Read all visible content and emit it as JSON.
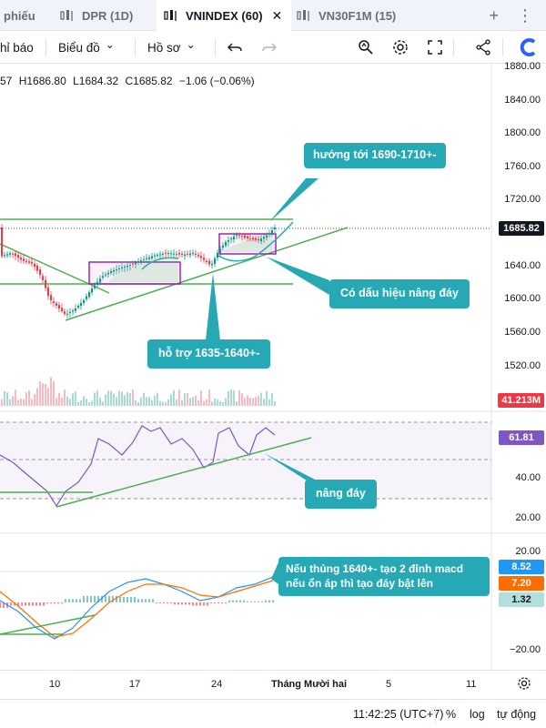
{
  "tabs": [
    {
      "label": "phiếu",
      "active": false
    },
    {
      "label": "DPR (1D)",
      "active": false
    },
    {
      "label": "VNINDEX (60)",
      "active": true
    },
    {
      "label": "VN30F1M (15)",
      "active": false
    }
  ],
  "tab_close_symbol": "✕",
  "tabbar_actions": {
    "add_symbol": "+",
    "more_symbol": "⋮"
  },
  "toolbar": {
    "item_alerts": "hỉ báo",
    "item_chart": "Biểu đồ",
    "item_profile": "Hồ sơ",
    "chevron": "⌄"
  },
  "ohlc": {
    "prefix": "57",
    "high": "H1686.80",
    "low": "L1684.32",
    "close": "C1685.82",
    "change": "−1.06 (−0.06%)"
  },
  "price_axis": {
    "labels": [
      "1880.00",
      "1840.00",
      "1800.00",
      "1760.00",
      "1720.00",
      "1640.00",
      "1600.00",
      "1560.00",
      "1520.00"
    ],
    "current_price": "1685.82",
    "volume": "41.213M"
  },
  "rsi_axis": {
    "labels": [
      "40.00",
      "20.00"
    ],
    "current": "61.81"
  },
  "macd_axis": {
    "labels": [
      "20.00",
      "−20.00"
    ],
    "macd_value": "8.52",
    "signal_value": "7.20",
    "histogram_value": "1.32"
  },
  "callouts": {
    "target": "hướng tới 1690-1710+-",
    "bottom_rising": "Có dấu hiệu nâng đáy",
    "support": "hỗ trợ 1635-1640+-",
    "rsi_rising": "nâng đáy",
    "macd_note_line1": "Nếu thủng 1640+- tạo 2 đỉnh macd",
    "macd_note_line2": "nếu ổn áp thì tạo đáy bật lên"
  },
  "time_axis": {
    "labels": [
      "10",
      "17",
      "24",
      "Tháng Mười hai",
      "5",
      "11"
    ]
  },
  "statusbar": {
    "time": "11:42:25 (UTC+7)",
    "percent": "%",
    "log": "log",
    "auto": "tự động"
  },
  "colors": {
    "candle_up": "#089981",
    "candle_down": "#f23645",
    "trend_line": "#4caf50",
    "box": "#9c27b0",
    "callout": "#26a9b5",
    "rsi_line": "#7e57c2",
    "macd_line": "#2196f3",
    "signal_line": "#ff6d00",
    "accent_logo": "#2962ff"
  },
  "icons": [
    "chart-candle-icon",
    "close-icon",
    "plus-icon",
    "more-icon",
    "undo-icon",
    "redo-icon",
    "magnifier-icon",
    "gear-icon",
    "fullscreen-icon",
    "share-icon",
    "brand-logo-icon",
    "settings-gear-icon"
  ]
}
